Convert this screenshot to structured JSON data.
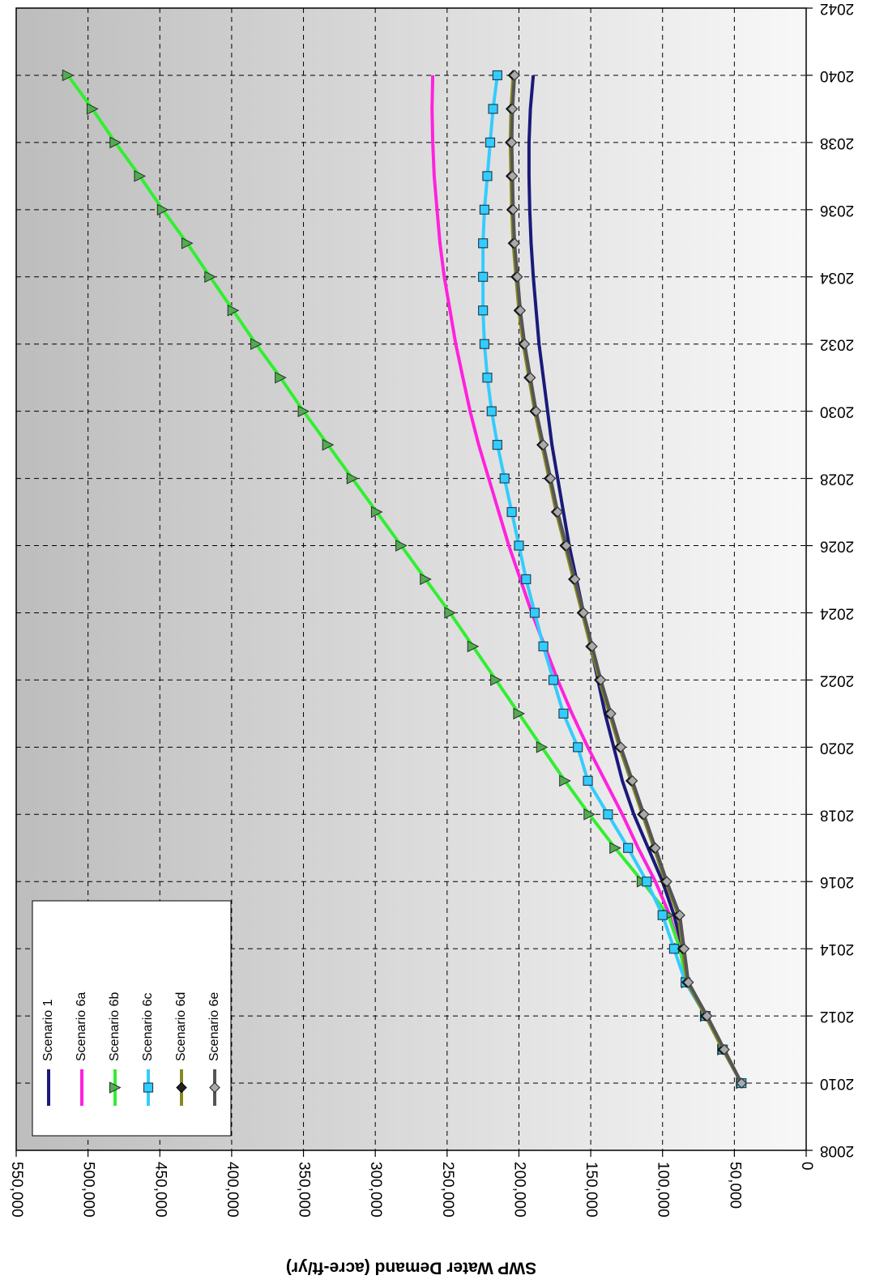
{
  "chart_data": {
    "type": "line",
    "title": "",
    "xlabel": "",
    "ylabel": "SWP Water Demand (acre-ft/yr)",
    "orientation": "rotated-180",
    "xlim": [
      2008,
      2042
    ],
    "ylim": [
      0,
      550000
    ],
    "x_ticks": [
      "2008",
      "2010",
      "2012",
      "2014",
      "2016",
      "2018",
      "2020",
      "2022",
      "2024",
      "2026",
      "2028",
      "2030",
      "2032",
      "2034",
      "2036",
      "2038",
      "2040",
      "2042"
    ],
    "y_ticks": [
      "0",
      "50,000",
      "100,000",
      "150,000",
      "200,000",
      "250,000",
      "300,000",
      "350,000",
      "400,000",
      "450,000",
      "500,000",
      "550,000"
    ],
    "grid": true,
    "legend_position": "bottom-left",
    "series": [
      {
        "name": "Scenario 1",
        "color": "#1a1a7a",
        "marker": "none",
        "x": [
          2010,
          2011,
          2012,
          2013,
          2014,
          2015,
          2016,
          2017,
          2018,
          2019,
          2020,
          2021,
          2022,
          2023,
          2024,
          2025,
          2026,
          2027,
          2028,
          2029,
          2030,
          2031,
          2032,
          2033,
          2034,
          2035,
          2036,
          2037,
          2038,
          2039,
          2040
        ],
        "y": [
          45000,
          58000,
          70000,
          83000,
          86000,
          92000,
          100000,
          110000,
          120000,
          128000,
          134000,
          140000,
          145000,
          150000,
          155000,
          160000,
          165000,
          169000,
          173000,
          177000,
          180000,
          183000,
          186000,
          188000,
          190000,
          191500,
          192500,
          193000,
          193000,
          192000,
          190000
        ]
      },
      {
        "name": "Scenario 6a",
        "color": "#ff22dd",
        "marker": "none",
        "x": [
          2010,
          2011,
          2012,
          2013,
          2014,
          2015,
          2016,
          2017,
          2018,
          2019,
          2020,
          2021,
          2022,
          2023,
          2024,
          2025,
          2026,
          2027,
          2028,
          2029,
          2030,
          2031,
          2032,
          2033,
          2034,
          2035,
          2036,
          2037,
          2038,
          2039,
          2040
        ],
        "y": [
          45000,
          58000,
          70000,
          83000,
          88000,
          95000,
          105000,
          117000,
          128000,
          140000,
          152000,
          163000,
          173000,
          182000,
          191000,
          199000,
          207000,
          214000,
          221000,
          228000,
          234000,
          239000,
          244000,
          248000,
          252000,
          255000,
          257000,
          259000,
          260000,
          260500,
          260000
        ]
      },
      {
        "name": "Scenario 6b",
        "color": "#33ee33",
        "marker": "triangle",
        "x": [
          2010,
          2011,
          2012,
          2013,
          2014,
          2015,
          2016,
          2017,
          2018,
          2019,
          2020,
          2021,
          2022,
          2023,
          2024,
          2025,
          2026,
          2027,
          2028,
          2029,
          2030,
          2031,
          2032,
          2033,
          2034,
          2035,
          2036,
          2037,
          2038,
          2039,
          2040
        ],
        "y": [
          45000,
          58000,
          70000,
          83000,
          88000,
          96000,
          114000,
          133000,
          151000,
          168000,
          184000,
          200000,
          216000,
          232000,
          248000,
          265000,
          282000,
          299000,
          316000,
          333000,
          350000,
          366000,
          383000,
          399000,
          415000,
          431000,
          448000,
          464000,
          481000,
          497000,
          514000
        ]
      },
      {
        "name": "Scenario 6c",
        "color": "#33ccff",
        "marker": "square",
        "x": [
          2010,
          2011,
          2012,
          2013,
          2014,
          2015,
          2016,
          2017,
          2018,
          2019,
          2020,
          2021,
          2022,
          2023,
          2024,
          2025,
          2026,
          2027,
          2028,
          2029,
          2030,
          2031,
          2032,
          2033,
          2034,
          2035,
          2036,
          2037,
          2038,
          2039,
          2040
        ],
        "y": [
          45000,
          58000,
          70000,
          84000,
          92000,
          100000,
          111000,
          124000,
          138000,
          152000,
          159000,
          169000,
          176000,
          183000,
          189000,
          195000,
          200000,
          205000,
          210000,
          215000,
          219000,
          222000,
          224000,
          225000,
          225000,
          225000,
          224000,
          222000,
          220000,
          218000,
          215000
        ]
      },
      {
        "name": "Scenario 6d",
        "color": "#888822",
        "marker": "diamond-dark",
        "x": [
          2010,
          2011,
          2012,
          2013,
          2014,
          2015,
          2016,
          2017,
          2018,
          2019,
          2020,
          2021,
          2022,
          2023,
          2024,
          2025,
          2026,
          2027,
          2028,
          2029,
          2030,
          2031,
          2032,
          2033,
          2034,
          2035,
          2036,
          2037,
          2038,
          2039,
          2040
        ],
        "y": [
          45000,
          58000,
          70000,
          83000,
          86000,
          89000,
          98000,
          106000,
          114000,
          122000,
          130000,
          137000,
          144000,
          150000,
          156000,
          162000,
          168000,
          174000,
          179000,
          184000,
          189000,
          193000,
          197000,
          200000,
          202000,
          204000,
          205000,
          205500,
          206000,
          205500,
          204000
        ]
      },
      {
        "name": "Scenario 6e",
        "color": "#555555",
        "marker": "diamond-gray",
        "x": [
          2010,
          2011,
          2012,
          2013,
          2014,
          2015,
          2016,
          2017,
          2018,
          2019,
          2020,
          2021,
          2022,
          2023,
          2024,
          2025,
          2026,
          2027,
          2028,
          2029,
          2030,
          2031,
          2032,
          2033,
          2034,
          2035,
          2036,
          2037,
          2038,
          2039,
          2040
        ],
        "y": [
          45000,
          57000,
          69000,
          82000,
          85000,
          88000,
          97000,
          105000,
          113000,
          121000,
          129000,
          136000,
          143000,
          149000,
          155000,
          161000,
          167000,
          173000,
          178000,
          183000,
          188000,
          192000,
          196000,
          199000,
          201000,
          203000,
          204000,
          204500,
          205000,
          204500,
          203000
        ]
      }
    ]
  }
}
